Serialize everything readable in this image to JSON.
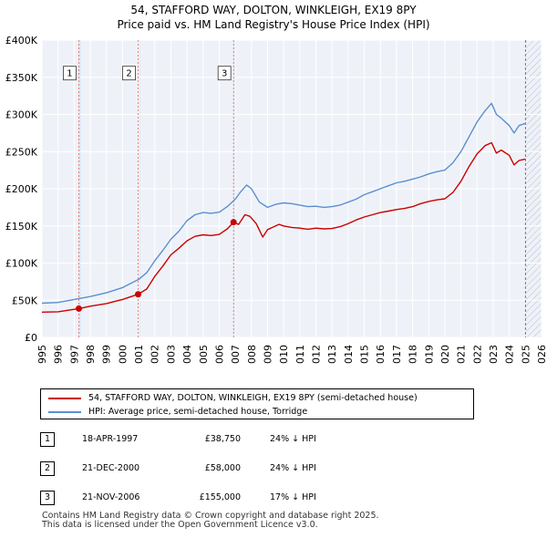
{
  "chart_data": {
    "type": "line",
    "title": "54, STAFFORD WAY, DOLTON, WINKLEIGH, EX19 8PY",
    "subtitle": "Price paid vs. HM Land Registry's House Price Index (HPI)",
    "xlabel": "",
    "ylabel": "",
    "xlim": [
      1995,
      2026
    ],
    "ylim": [
      0,
      400000
    ],
    "x_ticks": [
      "1995",
      "1996",
      "1997",
      "1998",
      "1999",
      "2000",
      "2001",
      "2002",
      "2003",
      "2004",
      "2005",
      "2006",
      "2007",
      "2008",
      "2009",
      "2010",
      "2011",
      "2012",
      "2013",
      "2014",
      "2015",
      "2016",
      "2017",
      "2018",
      "2019",
      "2020",
      "2021",
      "2022",
      "2023",
      "2024",
      "2025",
      "2026"
    ],
    "y_ticks": [
      {
        "value": 0,
        "label": "£0"
      },
      {
        "value": 50000,
        "label": "£50K"
      },
      {
        "value": 100000,
        "label": "£100K"
      },
      {
        "value": 150000,
        "label": "£150K"
      },
      {
        "value": 200000,
        "label": "£200K"
      },
      {
        "value": 250000,
        "label": "£250K"
      },
      {
        "value": 300000,
        "label": "£300K"
      },
      {
        "value": 350000,
        "label": "£350K"
      },
      {
        "value": 400000,
        "label": "£400K"
      }
    ],
    "grid": true,
    "forecast_from": 2025.0,
    "series": [
      {
        "name": "54, STAFFORD WAY, DOLTON, WINKLEIGH, EX19 8PY (semi-detached house)",
        "color": "#cc0000",
        "x": [
          1995.0,
          1996.0,
          1997.29,
          1998.0,
          1999.0,
          2000.0,
          2000.97,
          2001.5,
          2002.0,
          2002.5,
          2003.0,
          2003.5,
          2004.0,
          2004.5,
          2005.0,
          2005.5,
          2006.0,
          2006.5,
          2006.89,
          2007.2,
          2007.6,
          2007.9,
          2008.3,
          2008.7,
          2009.0,
          2009.3,
          2009.7,
          2010.0,
          2010.5,
          2011.0,
          2011.5,
          2012.0,
          2012.5,
          2013.0,
          2013.5,
          2014.0,
          2014.5,
          2015.0,
          2015.5,
          2016.0,
          2016.5,
          2017.0,
          2017.5,
          2018.0,
          2018.5,
          2019.0,
          2019.5,
          2020.0,
          2020.5,
          2021.0,
          2021.5,
          2022.0,
          2022.5,
          2022.9,
          2023.2,
          2023.5,
          2024.0,
          2024.3,
          2024.6,
          2025.0
        ],
        "y": [
          34000,
          34500,
          38750,
          42000,
          45500,
          51000,
          58000,
          65000,
          82000,
          96000,
          111000,
          120000,
          130000,
          136000,
          138000,
          137000,
          138500,
          146000,
          155000,
          152000,
          165000,
          163000,
          153000,
          135000,
          145000,
          148000,
          152000,
          150000,
          148000,
          147000,
          145500,
          147000,
          146000,
          146500,
          149000,
          153000,
          158000,
          162000,
          165000,
          168000,
          170000,
          172000,
          173500,
          176000,
          180000,
          183000,
          185000,
          186500,
          195000,
          210000,
          230000,
          247000,
          258000,
          262000,
          248000,
          252000,
          245000,
          232000,
          238000,
          240000
        ]
      },
      {
        "name": "HPI: Average price, semi-detached house, Torridge",
        "color": "#5b8fd0",
        "x": [
          1995.0,
          1996.0,
          1997.0,
          1998.0,
          1999.0,
          2000.0,
          2001.0,
          2001.5,
          2002.0,
          2002.5,
          2003.0,
          2003.5,
          2004.0,
          2004.5,
          2005.0,
          2005.5,
          2006.0,
          2006.5,
          2007.0,
          2007.3,
          2007.7,
          2008.0,
          2008.5,
          2009.0,
          2009.5,
          2010.0,
          2010.5,
          2011.0,
          2011.5,
          2012.0,
          2012.5,
          2013.0,
          2013.5,
          2014.0,
          2014.5,
          2015.0,
          2015.5,
          2016.0,
          2016.5,
          2017.0,
          2017.5,
          2018.0,
          2018.5,
          2019.0,
          2019.5,
          2020.0,
          2020.5,
          2021.0,
          2021.5,
          2022.0,
          2022.5,
          2022.9,
          2023.2,
          2023.5,
          2024.0,
          2024.3,
          2024.6,
          2025.0
        ],
        "y": [
          46000,
          47000,
          51000,
          55000,
          60000,
          67000,
          78000,
          87000,
          103000,
          117000,
          132000,
          143000,
          157000,
          165000,
          168000,
          167000,
          168500,
          176000,
          186000,
          195000,
          205000,
          200000,
          182000,
          175000,
          179000,
          181000,
          180000,
          178000,
          176000,
          176500,
          175000,
          176000,
          178000,
          182000,
          186000,
          192000,
          196000,
          200000,
          204000,
          208000,
          210000,
          213000,
          216000,
          220000,
          223000,
          225000,
          235000,
          250000,
          270000,
          290000,
          305000,
          315000,
          300000,
          295000,
          285000,
          275000,
          285000,
          288000
        ]
      }
    ],
    "transactions": [
      {
        "label": "1",
        "date": "18-APR-1997",
        "x": 1997.29,
        "price": 38750,
        "price_text": "£38,750",
        "hpi_text": "24% ↓ HPI"
      },
      {
        "label": "2",
        "date": "21-DEC-2000",
        "x": 2000.97,
        "price": 58000,
        "price_text": "£58,000",
        "hpi_text": "24% ↓ HPI"
      },
      {
        "label": "3",
        "date": "21-NOV-2006",
        "x": 2006.89,
        "price": 155000,
        "price_text": "£155,000",
        "hpi_text": "17% ↓ HPI"
      }
    ]
  },
  "legend": {
    "property_label": "54, STAFFORD WAY, DOLTON, WINKLEIGH, EX19 8PY (semi-detached house)",
    "hpi_label": "HPI: Average price, semi-detached house, Torridge",
    "property_color": "#cc0000",
    "hpi_color": "#5b8fd0"
  },
  "footer": {
    "line1": "Contains HM Land Registry data © Crown copyright and database right 2025.",
    "line2": "This data is licensed under the Open Government Licence v3.0."
  }
}
